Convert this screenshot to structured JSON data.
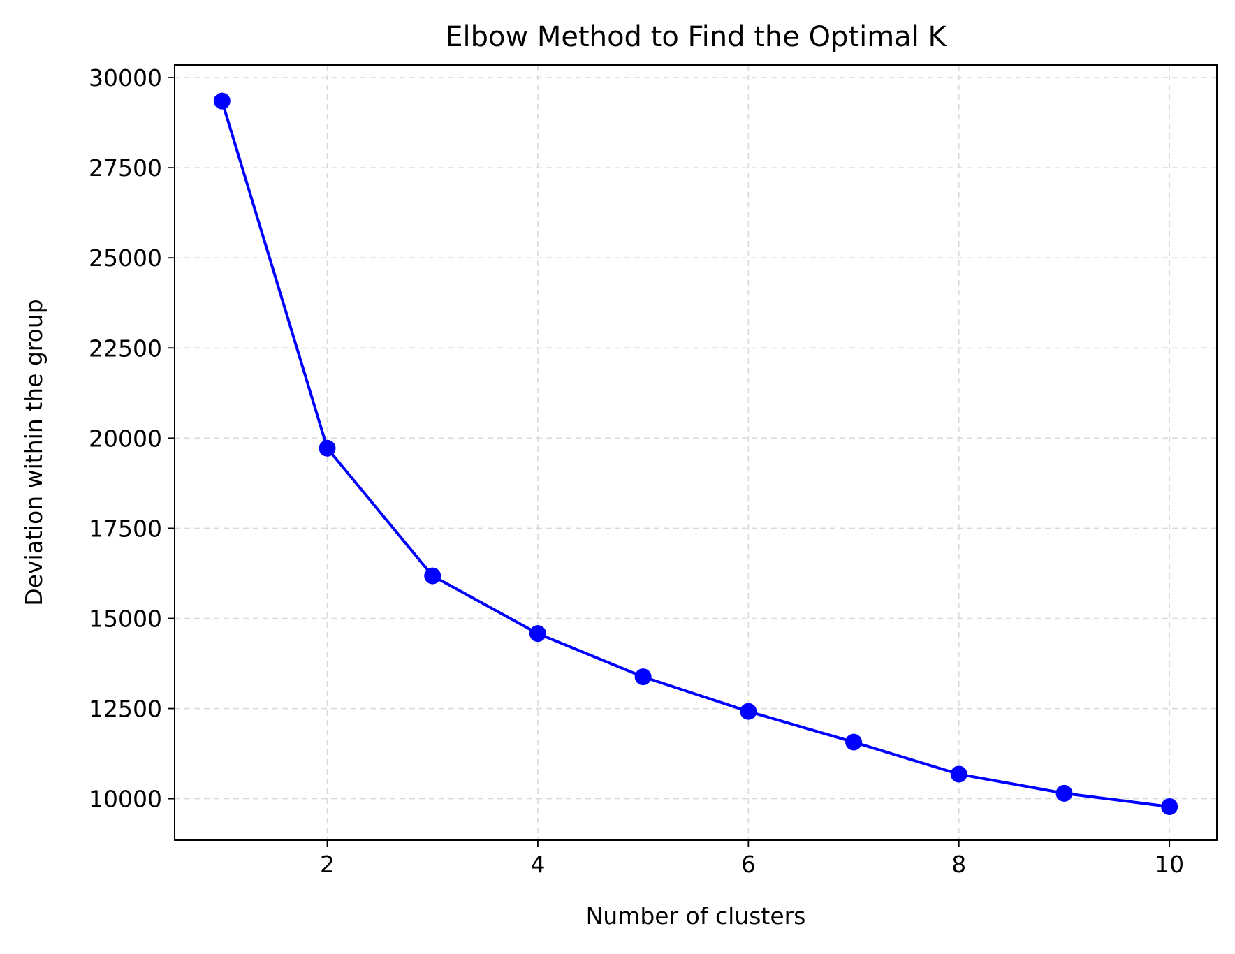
{
  "chart_data": {
    "type": "line",
    "title": "Elbow Method to Find the Optimal K",
    "xlabel": "Number of clusters",
    "ylabel": "Deviation within the group",
    "x": [
      1,
      2,
      3,
      4,
      5,
      6,
      7,
      8,
      9,
      10
    ],
    "series": [
      {
        "values": [
          29350,
          19720,
          16180,
          14580,
          13380,
          12420,
          11570,
          10680,
          10150,
          9780
        ]
      }
    ],
    "xlim": [
      0.55,
      10.45
    ],
    "ylim": [
      8850,
      30350
    ],
    "xticks": [
      2,
      4,
      6,
      8,
      10
    ],
    "yticks": [
      10000,
      12500,
      15000,
      17500,
      20000,
      22500,
      25000,
      27500,
      30000
    ],
    "grid": true,
    "marker": "circle",
    "colors": {
      "series": "#0000ff",
      "grid": "#d9d9d9",
      "axes": "#000000"
    }
  }
}
